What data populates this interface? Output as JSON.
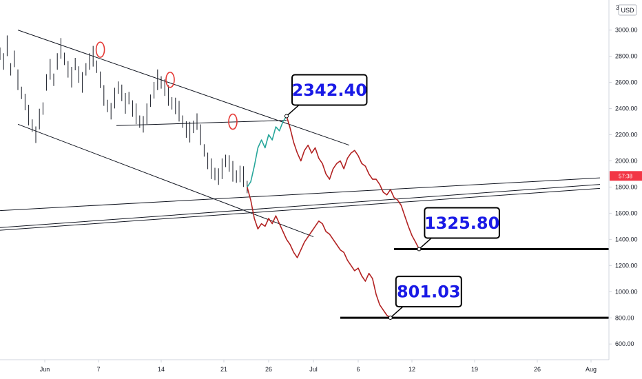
{
  "chart_data": {
    "type": "line",
    "currency": "USD",
    "y_ticks": [
      600,
      800,
      1000,
      1200,
      1400,
      1600,
      1800,
      2000,
      2200,
      2400,
      2600,
      2800,
      3000
    ],
    "y_tick_labels": [
      "600.00",
      "800.00",
      "1000.00",
      "1200.00",
      "1400.00",
      "1600.00",
      "1800.00",
      "2000.00",
      "2200.00",
      "2400.00",
      "2600.00",
      "2800.00",
      "3000.00"
    ],
    "y_top_label": "3",
    "ylim": [
      480,
      3230
    ],
    "x_ticks": [
      {
        "day": 1,
        "label": "Jun"
      },
      {
        "day": 7,
        "label": "7"
      },
      {
        "day": 14,
        "label": "14"
      },
      {
        "day": 21,
        "label": "21"
      },
      {
        "day": 26,
        "label": "26"
      },
      {
        "day": 31,
        "label": "Jul"
      },
      {
        "day": 36,
        "label": "6"
      },
      {
        "day": 42,
        "label": "12"
      },
      {
        "day": 49,
        "label": "19"
      },
      {
        "day": 56,
        "label": "26"
      },
      {
        "day": 62,
        "label": "Aug"
      }
    ],
    "xlim": [
      -4,
      64
    ],
    "current_price_tag": {
      "label": "57:38",
      "value": 1885,
      "color": "#f23645"
    },
    "price_bars": [
      [
        -4,
        2820
      ],
      [
        -3.6,
        2760
      ],
      [
        -3.2,
        2880
      ],
      [
        -2.8,
        2700
      ],
      [
        -2.4,
        2780
      ],
      [
        -2,
        2620
      ],
      [
        -1.6,
        2520
      ],
      [
        -1.2,
        2450
      ],
      [
        -0.8,
        2350
      ],
      [
        -0.4,
        2270
      ],
      [
        0,
        2200
      ],
      [
        0.4,
        2320
      ],
      [
        0.8,
        2400
      ],
      [
        1.2,
        2600
      ],
      [
        1.6,
        2700
      ],
      [
        2,
        2620
      ],
      [
        2.4,
        2760
      ],
      [
        2.8,
        2860
      ],
      [
        3.2,
        2780
      ],
      [
        3.6,
        2700
      ],
      [
        4,
        2640
      ],
      [
        4.4,
        2740
      ],
      [
        4.8,
        2660
      ],
      [
        5.2,
        2600
      ],
      [
        5.6,
        2700
      ],
      [
        6,
        2760
      ],
      [
        6.4,
        2800
      ],
      [
        6.8,
        2720
      ],
      [
        7.2,
        2620
      ],
      [
        7.6,
        2500
      ],
      [
        8,
        2420
      ],
      [
        8.4,
        2380
      ],
      [
        8.8,
        2480
      ],
      [
        9.2,
        2560
      ],
      [
        9.6,
        2520
      ],
      [
        10,
        2440
      ],
      [
        10.4,
        2480
      ],
      [
        10.8,
        2400
      ],
      [
        11.2,
        2360
      ],
      [
        11.6,
        2300
      ],
      [
        12,
        2280
      ],
      [
        12.4,
        2360
      ],
      [
        12.8,
        2460
      ],
      [
        13.2,
        2540
      ],
      [
        13.6,
        2620
      ],
      [
        14,
        2600
      ],
      [
        14.4,
        2560
      ],
      [
        14.8,
        2500
      ],
      [
        15.2,
        2440
      ],
      [
        15.6,
        2420
      ],
      [
        16,
        2380
      ],
      [
        16.4,
        2300
      ],
      [
        16.8,
        2240
      ],
      [
        17.2,
        2220
      ],
      [
        17.6,
        2260
      ],
      [
        18,
        2300
      ],
      [
        18.4,
        2200
      ],
      [
        18.8,
        2080
      ],
      [
        19.2,
        2000
      ],
      [
        19.6,
        1940
      ],
      [
        20,
        1900
      ],
      [
        20.4,
        1880
      ],
      [
        20.8,
        1940
      ],
      [
        21.2,
        2000
      ],
      [
        21.6,
        1980
      ],
      [
        22,
        1920
      ],
      [
        22.4,
        1880
      ],
      [
        22.8,
        1900
      ],
      [
        23.2,
        1880
      ],
      [
        23.6,
        1800
      ]
    ],
    "series": [
      {
        "color": "#26a69a",
        "points": [
          [
            23.6,
            1800
          ],
          [
            24,
            1840
          ],
          [
            24.4,
            1960
          ],
          [
            24.8,
            2100
          ],
          [
            25.2,
            2160
          ],
          [
            25.6,
            2100
          ],
          [
            26,
            2200
          ],
          [
            26.4,
            2160
          ],
          [
            26.8,
            2260
          ],
          [
            27.2,
            2230
          ],
          [
            27.6,
            2300
          ],
          [
            28,
            2342.4
          ]
        ]
      },
      {
        "color": "#b22222",
        "points": [
          [
            23.6,
            1800
          ],
          [
            24,
            1700
          ],
          [
            24.4,
            1560
          ],
          [
            24.8,
            1480
          ],
          [
            25.2,
            1520
          ],
          [
            25.6,
            1500
          ],
          [
            26,
            1560
          ],
          [
            26.4,
            1520
          ],
          [
            26.8,
            1580
          ],
          [
            27.2,
            1520
          ],
          [
            27.6,
            1460
          ],
          [
            28,
            1400
          ],
          [
            28.4,
            1360
          ],
          [
            28.8,
            1300
          ],
          [
            29.2,
            1260
          ],
          [
            29.6,
            1320
          ],
          [
            30,
            1380
          ],
          [
            30.4,
            1420
          ],
          [
            30.8,
            1460
          ],
          [
            31.2,
            1500
          ],
          [
            31.6,
            1540
          ],
          [
            32,
            1520
          ],
          [
            32.4,
            1460
          ],
          [
            32.8,
            1440
          ],
          [
            33.2,
            1400
          ],
          [
            33.6,
            1360
          ],
          [
            34,
            1320
          ],
          [
            34.4,
            1300
          ],
          [
            34.8,
            1240
          ],
          [
            35.2,
            1200
          ],
          [
            35.6,
            1160
          ],
          [
            36,
            1180
          ],
          [
            36.4,
            1120
          ],
          [
            36.8,
            1080
          ],
          [
            37.2,
            1140
          ],
          [
            37.6,
            1100
          ],
          [
            38,
            980
          ],
          [
            38.4,
            900
          ],
          [
            38.8,
            860
          ],
          [
            39.2,
            820
          ],
          [
            39.6,
            801.03
          ]
        ]
      },
      {
        "color": "#b22222",
        "points": [
          [
            28,
            2342.4
          ],
          [
            28.4,
            2250
          ],
          [
            28.8,
            2140
          ],
          [
            29.2,
            2060
          ],
          [
            29.6,
            2000
          ],
          [
            30,
            2080
          ],
          [
            30.4,
            2120
          ],
          [
            30.8,
            2060
          ],
          [
            31.2,
            2100
          ],
          [
            31.6,
            2020
          ],
          [
            32,
            1980
          ],
          [
            32.4,
            1900
          ],
          [
            32.8,
            1860
          ],
          [
            33.2,
            1940
          ],
          [
            33.6,
            1980
          ],
          [
            34,
            2000
          ],
          [
            34.4,
            1940
          ],
          [
            34.8,
            2020
          ],
          [
            35.2,
            2060
          ],
          [
            35.6,
            2080
          ],
          [
            36,
            2040
          ],
          [
            36.4,
            1980
          ],
          [
            36.8,
            1960
          ],
          [
            37.2,
            1900
          ],
          [
            37.6,
            1860
          ],
          [
            38,
            1860
          ],
          [
            38.4,
            1820
          ],
          [
            38.8,
            1760
          ],
          [
            39.2,
            1740
          ],
          [
            39.6,
            1780
          ],
          [
            40,
            1720
          ],
          [
            40.4,
            1700
          ],
          [
            40.8,
            1660
          ],
          [
            41.2,
            1580
          ],
          [
            41.6,
            1500
          ],
          [
            42,
            1430
          ],
          [
            42.4,
            1380
          ],
          [
            42.8,
            1325.8
          ]
        ]
      }
    ],
    "trend_lines": [
      [
        [
          -2,
          3000
        ],
        [
          35,
          2120
        ]
      ],
      [
        [
          -2,
          2280
        ],
        [
          31,
          1420
        ]
      ],
      [
        [
          9,
          2270
        ],
        [
          28,
          2310
        ]
      ],
      [
        [
          -4,
          1620
        ],
        [
          63,
          1870
        ]
      ],
      [
        [
          -4,
          1490
        ],
        [
          63,
          1820
        ]
      ],
      [
        [
          -4,
          1470
        ],
        [
          63,
          1790
        ]
      ]
    ],
    "support_levels": [
      {
        "value": 1325.8,
        "from": 40,
        "to": 64
      },
      {
        "value": 801.03,
        "from": 34,
        "to": 64
      }
    ],
    "highlight_circles": [
      {
        "day": 7.2,
        "value": 2850
      },
      {
        "day": 15,
        "value": 2620
      },
      {
        "day": 22,
        "value": 2300
      }
    ],
    "callouts": [
      {
        "text": "2342.40",
        "day": 28,
        "value": 2342.4
      },
      {
        "text": "1325.80",
        "day": 42.8,
        "value": 1325.8
      },
      {
        "text": "801.03",
        "day": 39.6,
        "value": 801.03
      }
    ]
  }
}
